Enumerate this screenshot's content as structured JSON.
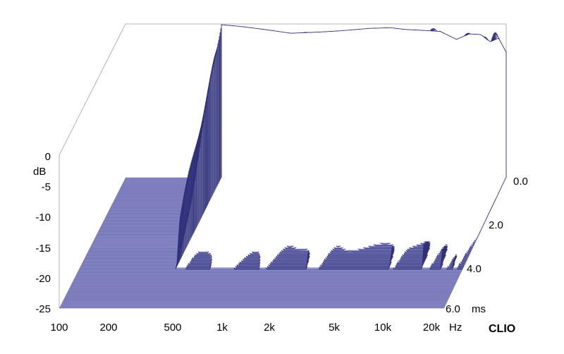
{
  "chart_data": {
    "type": "waterfall",
    "title": "",
    "brand": "CLIO",
    "y_axis": {
      "label": "dB",
      "ticks": [
        "0",
        "-5",
        "-10",
        "-15",
        "-20",
        "-25"
      ],
      "range": [
        -25,
        0
      ]
    },
    "x_axis": {
      "unit": "Hz",
      "scale": "log",
      "ticks": [
        "100",
        "200",
        "500",
        "1k",
        "2k",
        "5k",
        "10k",
        "20k"
      ],
      "tick_values": [
        100,
        200,
        500,
        1000,
        2000,
        5000,
        10000,
        20000
      ],
      "range": [
        100,
        20000
      ]
    },
    "z_axis": {
      "unit": "ms",
      "ticks": [
        "0.0",
        "2.0",
        "4.0",
        "6.0"
      ],
      "tick_values": [
        0,
        2,
        4,
        6
      ],
      "range": [
        0,
        6
      ]
    },
    "initial_response": {
      "time_ms": 0,
      "freq_hz": [
        380,
        500,
        700,
        1000,
        1500,
        2000,
        3000,
        4000,
        5000,
        6000,
        8000,
        10000,
        12000,
        14000,
        16000,
        18000,
        20000
      ],
      "level_db": [
        0,
        -0.3,
        -0.8,
        -1.4,
        -1.2,
        -1.0,
        -0.6,
        -0.5,
        -0.8,
        -0.9,
        -1.1,
        -2.4,
        -1.5,
        -1.6,
        -2.8,
        -2.2,
        -4.5
      ]
    },
    "colors": {
      "lines": "#2e2e7a",
      "floor": "#8c8cc6",
      "frame": "#b4b4b4"
    }
  }
}
